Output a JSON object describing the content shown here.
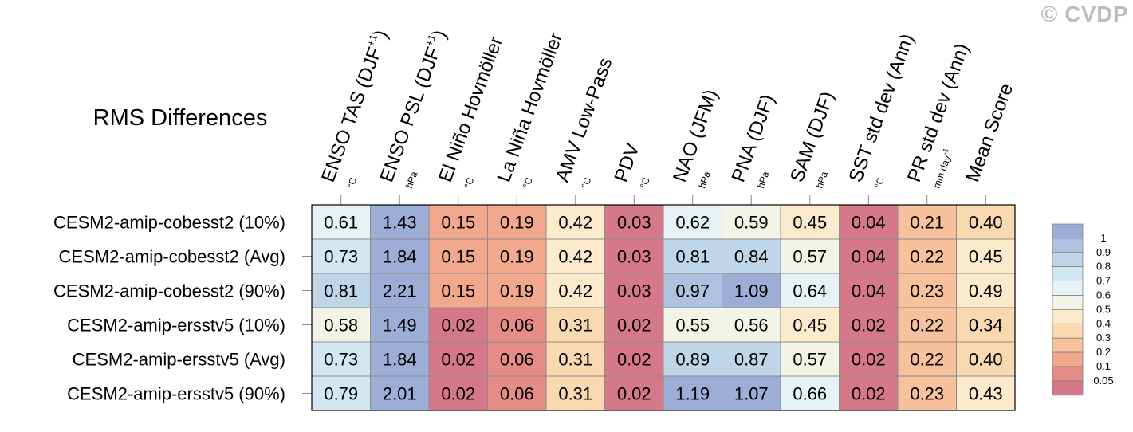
{
  "watermark": "© CVDP",
  "chart_data": {
    "type": "heatmap",
    "title": "RMS Differences",
    "columns": [
      {
        "label": "ENSO TAS (DJF",
        "sup": "+1",
        "close": ")",
        "unit": "°C"
      },
      {
        "label": "ENSO PSL (DJF",
        "sup": "+1",
        "close": ")",
        "unit": "hPa"
      },
      {
        "label": "El Niño Hovmöller",
        "sup": "",
        "close": "",
        "unit": "°C"
      },
      {
        "label": "La Niña Hovmöller",
        "sup": "",
        "close": "",
        "unit": "°C"
      },
      {
        "label": "AMV Low-Pass",
        "sup": "",
        "close": "",
        "unit": "°C"
      },
      {
        "label": "PDV",
        "sup": "",
        "close": "",
        "unit": "°C"
      },
      {
        "label": "NAO (JFM)",
        "sup": "",
        "close": "",
        "unit": "hPa"
      },
      {
        "label": "PNA (DJF)",
        "sup": "",
        "close": "",
        "unit": "hPa"
      },
      {
        "label": "SAM (DJF)",
        "sup": "",
        "close": "",
        "unit": "hPa"
      },
      {
        "label": "SST std dev (Ann)",
        "sup": "",
        "close": "",
        "unit": "°C"
      },
      {
        "label": "PR std dev (Ann)",
        "sup": "",
        "close": "",
        "unit": "mm day-1"
      },
      {
        "label": "Mean Score",
        "sup": "",
        "close": "",
        "unit": ""
      }
    ],
    "rows": [
      "CESM2-amip-cobesst2 (10%)",
      "CESM2-amip-cobesst2 (Avg)",
      "CESM2-amip-cobesst2 (90%)",
      "CESM2-amip-ersstv5 (10%)",
      "CESM2-amip-ersstv5 (Avg)",
      "CESM2-amip-ersstv5 (90%)"
    ],
    "values": [
      [
        "0.61",
        "1.43",
        "0.15",
        "0.19",
        "0.42",
        "0.03",
        "0.62",
        "0.59",
        "0.45",
        "0.04",
        "0.21",
        "0.40"
      ],
      [
        "0.73",
        "1.84",
        "0.15",
        "0.19",
        "0.42",
        "0.03",
        "0.81",
        "0.84",
        "0.57",
        "0.04",
        "0.22",
        "0.45"
      ],
      [
        "0.81",
        "2.21",
        "0.15",
        "0.19",
        "0.42",
        "0.03",
        "0.97",
        "1.09",
        "0.64",
        "0.04",
        "0.23",
        "0.49"
      ],
      [
        "0.58",
        "1.49",
        "0.02",
        "0.06",
        "0.31",
        "0.02",
        "0.55",
        "0.56",
        "0.45",
        "0.02",
        "0.22",
        "0.34"
      ],
      [
        "0.73",
        "1.84",
        "0.02",
        "0.06",
        "0.31",
        "0.02",
        "0.89",
        "0.87",
        "0.57",
        "0.02",
        "0.22",
        "0.40"
      ],
      [
        "0.79",
        "2.01",
        "0.02",
        "0.06",
        "0.31",
        "0.02",
        "1.19",
        "1.07",
        "0.66",
        "0.02",
        "0.23",
        "0.43"
      ]
    ],
    "colorbar": {
      "labels": [
        "1",
        "0.9",
        "0.8",
        "0.7",
        "0.6",
        "0.5",
        "0.4",
        "0.3",
        "0.2",
        "0.1",
        "0.05"
      ],
      "colors": [
        "#9daed6",
        "#adc2df",
        "#bfd6e9",
        "#d2e7f1",
        "#e6f2f4",
        "#f4f3e8",
        "#fbeacb",
        "#f9d9b0",
        "#f6c19b",
        "#f2a88c",
        "#e58c86",
        "#d5788a"
      ],
      "thresholds": [
        1,
        0.9,
        0.8,
        0.7,
        0.6,
        0.5,
        0.4,
        0.3,
        0.2,
        0.1,
        0.05
      ]
    },
    "grid_color": "#8c8c8c"
  }
}
